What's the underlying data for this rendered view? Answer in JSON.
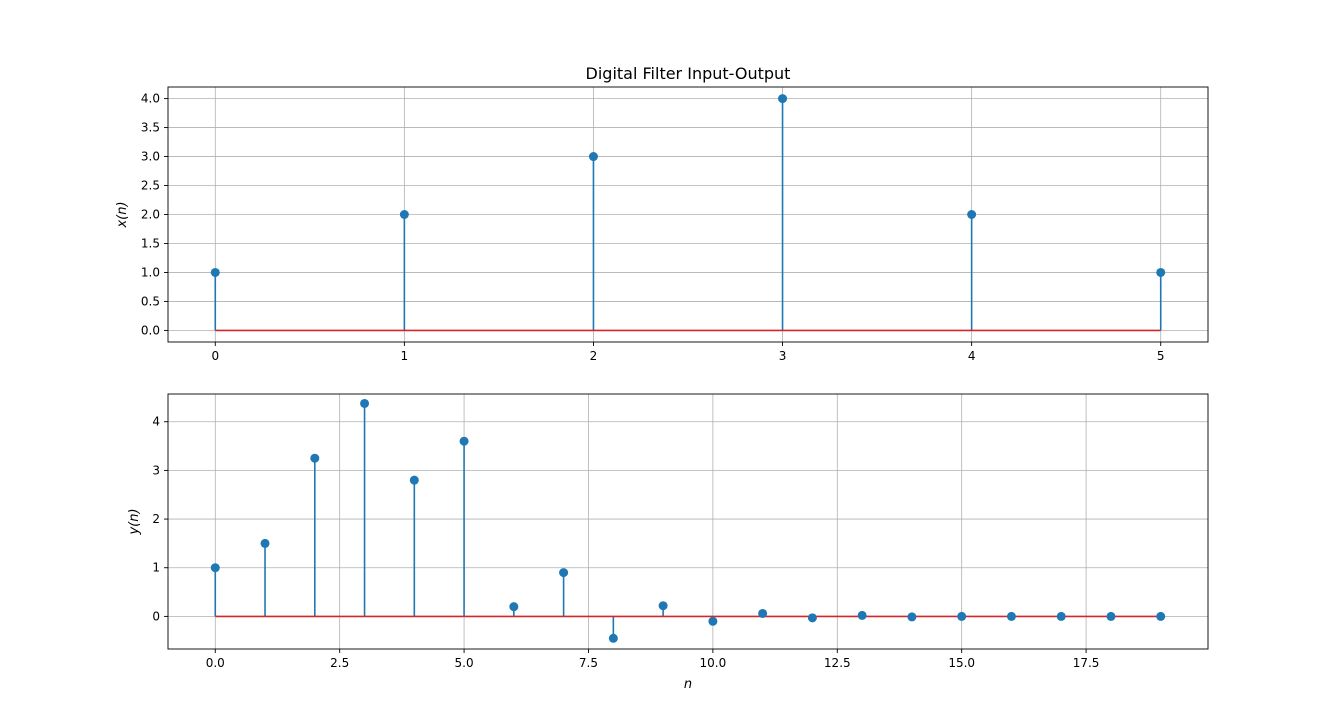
{
  "colors": {
    "stem": "#1f77b4",
    "baseline": "#d62728",
    "grid": "#b0b0b0",
    "axes": "#000000"
  },
  "chart_data": [
    {
      "type": "stem",
      "title": "Digital Filter Input-Output",
      "xlabel": "",
      "ylabel": "x(n)",
      "grid": true,
      "xlim": [
        -0.25,
        5.25
      ],
      "ylim": [
        -0.2,
        4.2
      ],
      "xticks": [
        0,
        1,
        2,
        3,
        4,
        5
      ],
      "xtick_labels": [
        "0",
        "1",
        "2",
        "3",
        "4",
        "5"
      ],
      "yticks": [
        0.0,
        0.5,
        1.0,
        1.5,
        2.0,
        2.5,
        3.0,
        3.5,
        4.0
      ],
      "ytick_labels": [
        "0.0",
        "0.5",
        "1.0",
        "1.5",
        "2.0",
        "2.5",
        "3.0",
        "3.5",
        "4.0"
      ],
      "baseline": 0,
      "x": [
        0,
        1,
        2,
        3,
        4,
        5
      ],
      "y": [
        1,
        2,
        3,
        4,
        2,
        1
      ]
    },
    {
      "type": "stem",
      "title": "",
      "xlabel": "n",
      "ylabel": "y(n)",
      "grid": true,
      "xlim": [
        -0.95,
        19.95
      ],
      "ylim": [
        -0.67,
        4.57
      ],
      "xticks": [
        0.0,
        2.5,
        5.0,
        7.5,
        10.0,
        12.5,
        15.0,
        17.5
      ],
      "xtick_labels": [
        "0.0",
        "2.5",
        "5.0",
        "7.5",
        "10.0",
        "12.5",
        "15.0",
        "17.5"
      ],
      "yticks": [
        0,
        1,
        2,
        3,
        4
      ],
      "ytick_labels": [
        "0",
        "1",
        "2",
        "3",
        "4"
      ],
      "baseline": 0,
      "x": [
        0,
        1,
        2,
        3,
        4,
        5,
        6,
        7,
        8,
        9,
        10,
        11,
        12,
        13,
        14,
        15,
        16,
        17,
        18,
        19
      ],
      "y": [
        1.0,
        1.5,
        3.25,
        4.375,
        2.8,
        3.6,
        0.2,
        0.9,
        -0.45,
        0.22,
        -0.1,
        0.06,
        -0.03,
        0.02,
        -0.01,
        0.0,
        0.0,
        0.0,
        0.0,
        0.0
      ]
    }
  ]
}
